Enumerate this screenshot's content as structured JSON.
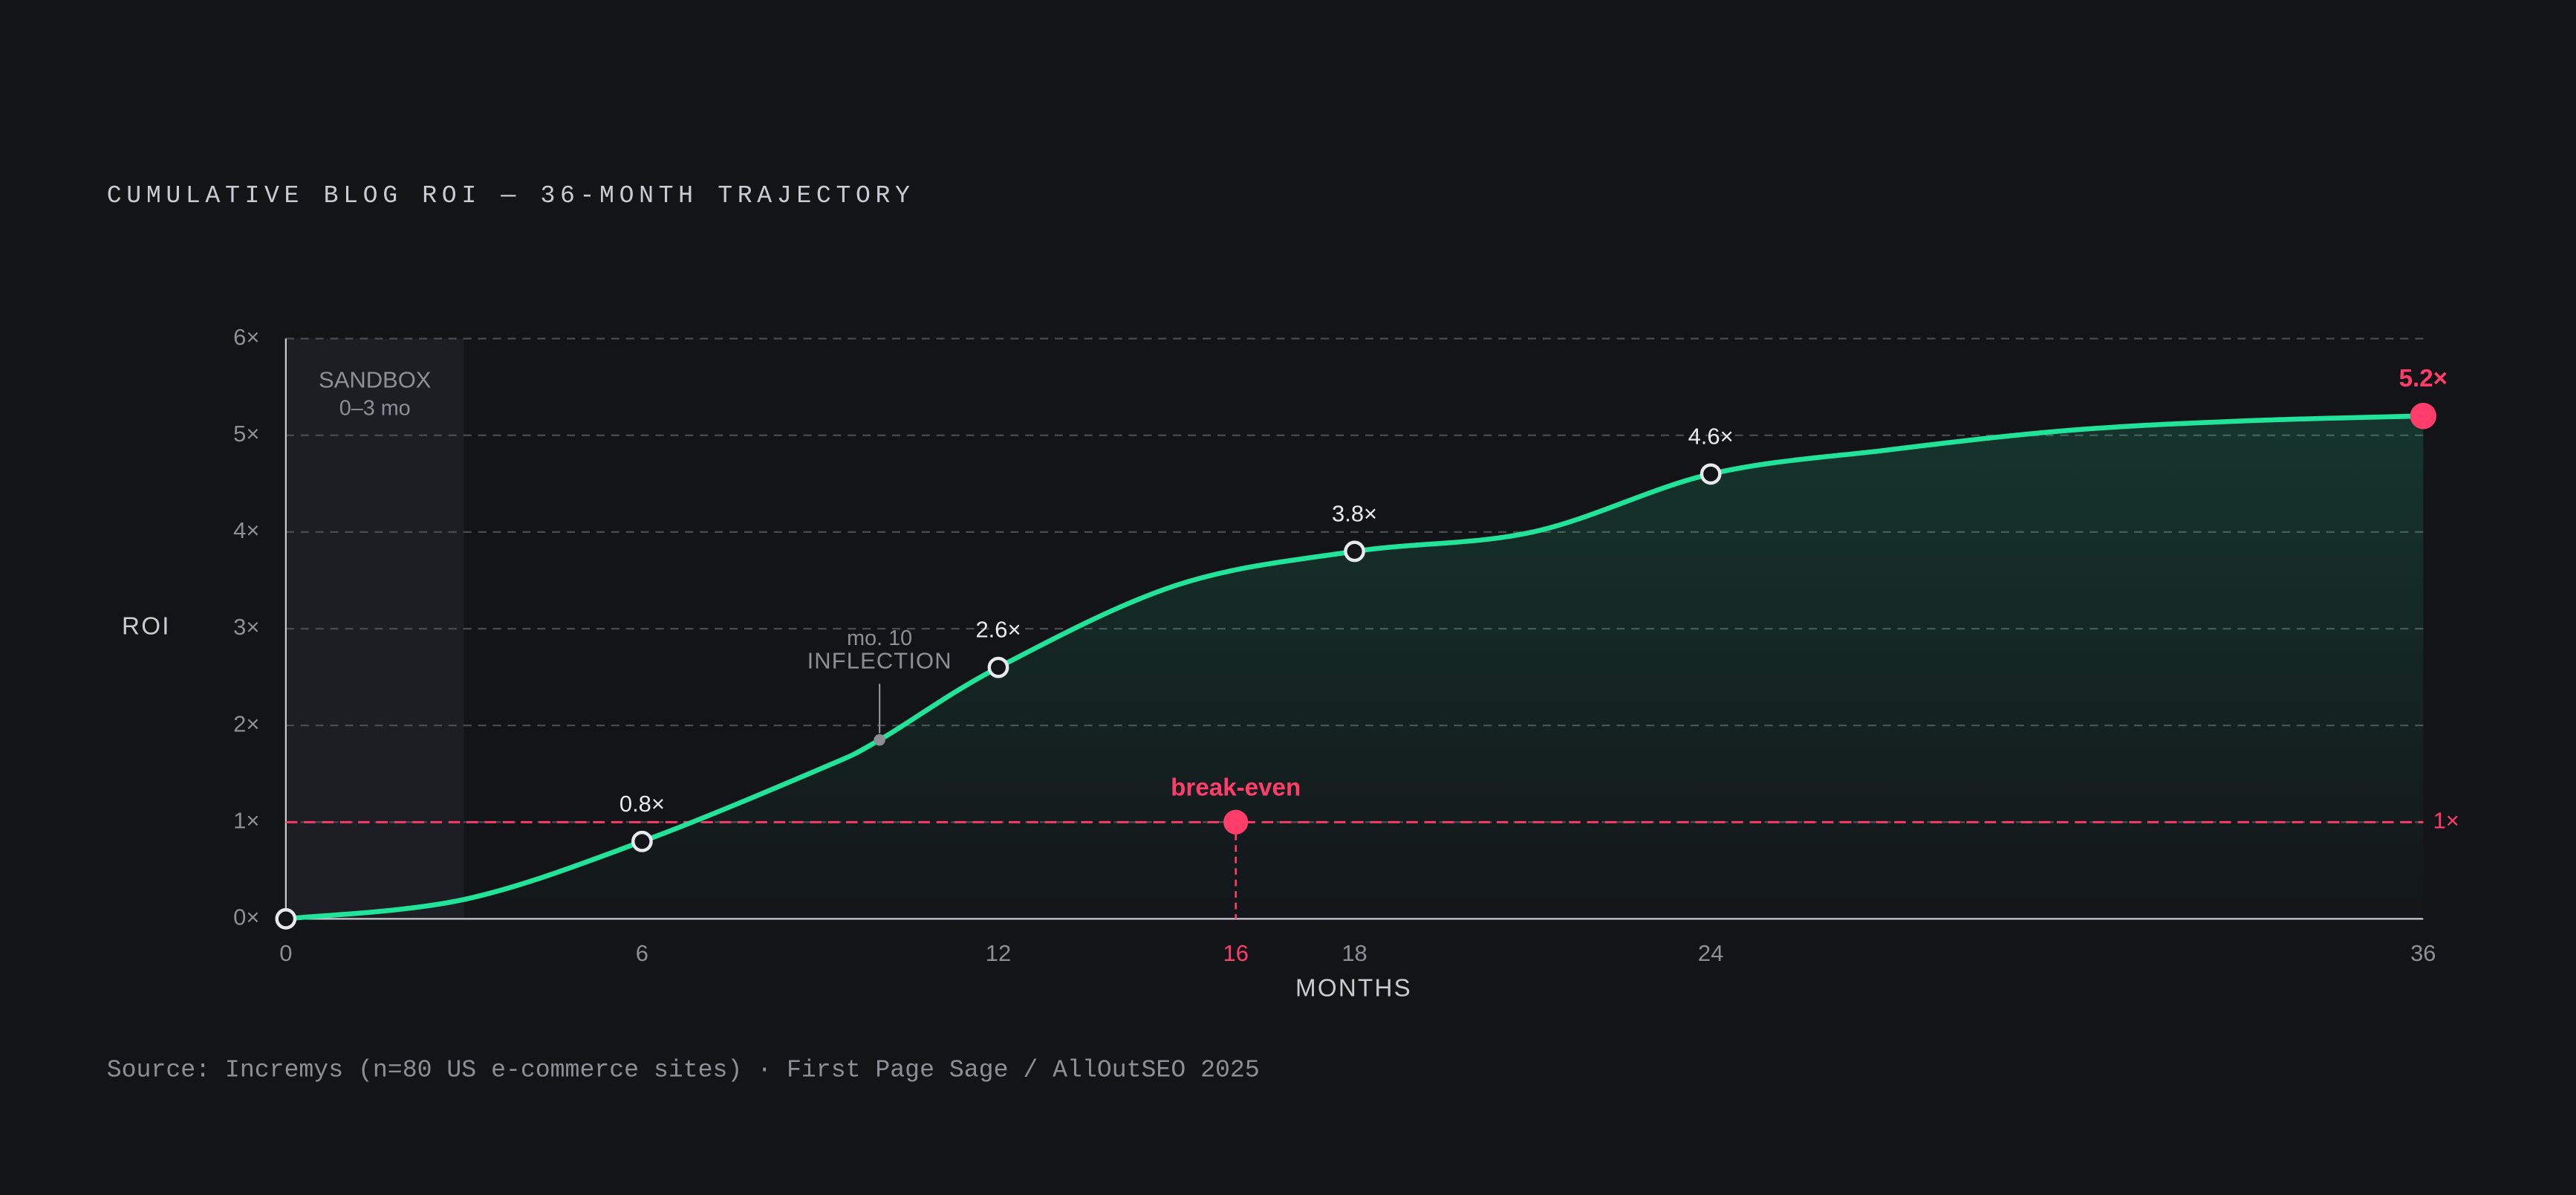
{
  "chart_data": {
    "type": "line",
    "title": "CUMULATIVE BLOG ROI — 36-MONTH TRAJECTORY",
    "y_label": "ROI",
    "x_label": "MONTHS",
    "source": "Source: Incremys (n=80 US e-commerce sites) · First Page Sage / AllOutSEO 2025",
    "xlim": [
      0,
      36
    ],
    "ylim": [
      0,
      6
    ],
    "xticks": [
      0,
      6,
      12,
      16,
      18,
      24,
      36
    ],
    "yticks": [
      {
        "value": 0,
        "label": "0×"
      },
      {
        "value": 1,
        "label": "1×"
      },
      {
        "value": 2,
        "label": "2×"
      },
      {
        "value": 3,
        "label": "3×"
      },
      {
        "value": 4,
        "label": "4×"
      },
      {
        "value": 5,
        "label": "5×"
      },
      {
        "value": 6,
        "label": "6×"
      }
    ],
    "grid": true,
    "line": {
      "color": "#22e39a",
      "x": [
        0,
        3,
        6,
        9,
        10,
        12,
        15,
        18,
        21,
        24,
        27,
        30,
        33,
        36
      ],
      "values": [
        0,
        0.2,
        0.8,
        1.55,
        1.85,
        2.6,
        3.45,
        3.8,
        4.0,
        4.6,
        4.85,
        5.05,
        5.15,
        5.2
      ]
    },
    "points": {
      "x": [
        0,
        6,
        12,
        18,
        24,
        36
      ],
      "values": [
        0,
        0.8,
        2.6,
        3.8,
        4.6,
        5.2
      ],
      "value_labels": [
        null,
        "0.8×",
        "2.6×",
        "3.8×",
        "4.6×",
        "5.2×"
      ]
    },
    "highlight_color": "#ff3d6a",
    "break_even": {
      "x": 16,
      "y": {
        "value": 1,
        "label": "1×"
      },
      "label": "break-even"
    },
    "sandbox": {
      "label": "SANDBOX",
      "sublabel": "0–3 mo",
      "x0": 0,
      "x1": 3
    },
    "inflection": {
      "x": 10,
      "value": 1.85,
      "label_top": "mo. 10",
      "label": "INFLECTION"
    }
  }
}
